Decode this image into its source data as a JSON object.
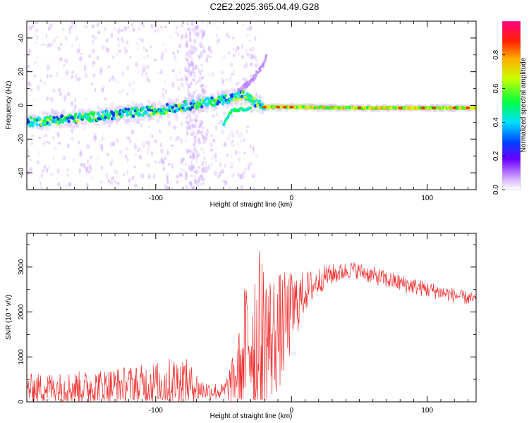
{
  "title": "C2E2.2025.365.04.49.G28",
  "chart_data": [
    {
      "type": "heatmap",
      "name": "spectrogram",
      "xlabel": "Height of straight line (km)",
      "ylabel": "Frequency (Hz)",
      "xlim": [
        -195,
        136
      ],
      "ylim": [
        -50,
        50
      ],
      "xticks": [
        -100,
        0,
        100
      ],
      "yticks": [
        -40,
        -20,
        0,
        20,
        40
      ],
      "colorbar": {
        "label": "Normalized spectral amplitude",
        "range": [
          0,
          1
        ],
        "ticks": [
          "0.0",
          "0.2",
          "0.4",
          "0.6",
          "0.8"
        ]
      },
      "main_track": [
        {
          "x": -195,
          "y": -10
        },
        {
          "x": -150,
          "y": -7
        },
        {
          "x": -100,
          "y": -3
        },
        {
          "x": -60,
          "y": 2
        },
        {
          "x": -35,
          "y": 6
        },
        {
          "x": -25,
          "y": 1
        },
        {
          "x": -20,
          "y": -1
        },
        {
          "x": 0,
          "y": -1
        },
        {
          "x": 50,
          "y": -1.5
        },
        {
          "x": 136,
          "y": -1.5
        }
      ],
      "secondary_track": [
        {
          "x": -50,
          "y": -11
        },
        {
          "x": -44,
          "y": -3
        },
        {
          "x": -30,
          "y": -2
        }
      ],
      "rising_branch": [
        {
          "x": -40,
          "y": 8
        },
        {
          "x": -30,
          "y": 14
        },
        {
          "x": -20,
          "y": 25
        },
        {
          "x": -18,
          "y": 31
        }
      ]
    },
    {
      "type": "line",
      "name": "snr",
      "xlabel": "Height of straight line (km)",
      "ylabel": "SNR (10 * v/v)",
      "xlim": [
        -195,
        136
      ],
      "ylim": [
        0,
        3750
      ],
      "xticks": [
        -100,
        0,
        100
      ],
      "yticks": [
        0,
        1000,
        2000,
        3000
      ],
      "color": "#f03030",
      "envelope": [
        {
          "x": -195,
          "mean": 300,
          "spread": 320
        },
        {
          "x": -150,
          "mean": 320,
          "spread": 380
        },
        {
          "x": -110,
          "mean": 380,
          "spread": 450
        },
        {
          "x": -80,
          "mean": 450,
          "spread": 600
        },
        {
          "x": -65,
          "mean": 260,
          "spread": 220
        },
        {
          "x": -50,
          "mean": 220,
          "spread": 180
        },
        {
          "x": -40,
          "mean": 600,
          "spread": 700
        },
        {
          "x": -32,
          "mean": 1400,
          "spread": 1800
        },
        {
          "x": -25,
          "mean": 1500,
          "spread": 2000
        },
        {
          "x": -15,
          "mean": 1400,
          "spread": 1500
        },
        {
          "x": -5,
          "mean": 1700,
          "spread": 1200
        },
        {
          "x": 0,
          "mean": 2000,
          "spread": 900
        },
        {
          "x": 10,
          "mean": 2450,
          "spread": 450
        },
        {
          "x": 25,
          "mean": 2800,
          "spread": 250
        },
        {
          "x": 45,
          "mean": 2950,
          "spread": 180
        },
        {
          "x": 70,
          "mean": 2720,
          "spread": 200
        },
        {
          "x": 100,
          "mean": 2500,
          "spread": 180
        },
        {
          "x": 136,
          "mean": 2270,
          "spread": 140
        }
      ]
    }
  ]
}
